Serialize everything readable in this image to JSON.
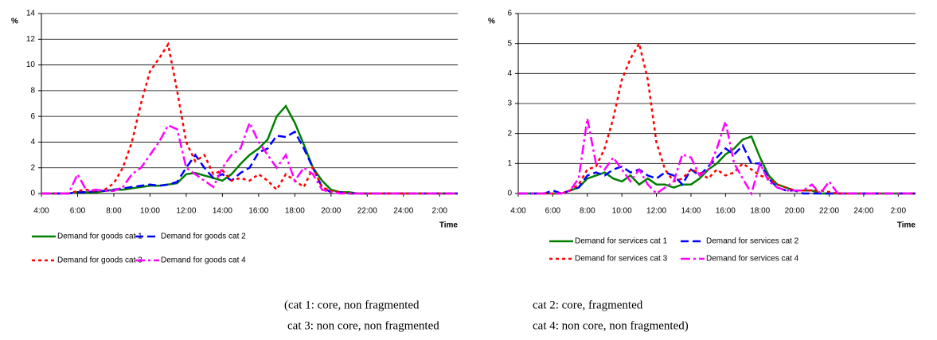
{
  "chart_data": [
    {
      "type": "line",
      "y_label": "%",
      "x_label": "Time",
      "x": [
        4,
        4.5,
        5,
        5.5,
        6,
        6.5,
        7,
        7.5,
        8,
        8.5,
        9,
        9.5,
        10,
        10.5,
        11,
        11.5,
        12,
        12.5,
        13,
        13.5,
        14,
        14.5,
        15,
        15.5,
        16,
        16.5,
        17,
        17.5,
        18,
        18.5,
        19,
        19.5,
        20,
        20.5,
        21,
        21.5,
        22,
        22.5,
        23,
        23.5,
        24,
        24.5,
        25,
        25.5,
        26,
        26.5,
        27
      ],
      "xlim": [
        4,
        27
      ],
      "xticks": [
        {
          "value": 4,
          "label": "4:00"
        },
        {
          "value": 6,
          "label": "6:00"
        },
        {
          "value": 8,
          "label": "8:00"
        },
        {
          "value": 10,
          "label": "10:00"
        },
        {
          "value": 12,
          "label": "12:00"
        },
        {
          "value": 14,
          "label": "14:00"
        },
        {
          "value": 16,
          "label": "16:00"
        },
        {
          "value": 18,
          "label": "18:00"
        },
        {
          "value": 20,
          "label": "20:00"
        },
        {
          "value": 22,
          "label": "22:00"
        },
        {
          "value": 24,
          "label": "24:00"
        },
        {
          "value": 26,
          "label": "2:00"
        }
      ],
      "ylim": [
        0,
        14
      ],
      "yticks": [
        0,
        2,
        4,
        6,
        8,
        10,
        12,
        14
      ],
      "grid": true,
      "series": [
        {
          "name": "Demand for goods cat 1",
          "color": "#008000",
          "line_style": "solid",
          "values": [
            0,
            0,
            0,
            0,
            0.1,
            0.1,
            0.1,
            0.2,
            0.3,
            0.3,
            0.4,
            0.5,
            0.6,
            0.6,
            0.7,
            0.8,
            1.5,
            1.6,
            1.4,
            1.2,
            1.0,
            1.5,
            2.3,
            3.0,
            3.5,
            4.2,
            6.0,
            6.8,
            5.5,
            3.8,
            2.0,
            1.0,
            0.3,
            0.1,
            0.1,
            0,
            0,
            0,
            0,
            0,
            0,
            0,
            0,
            0,
            0,
            0,
            0
          ]
        },
        {
          "name": "Demand for goods cat 2",
          "color": "#0000ff",
          "line_style": "dash",
          "values": [
            0,
            0,
            0,
            0,
            0.1,
            0.1,
            0.2,
            0.2,
            0.3,
            0.4,
            0.5,
            0.6,
            0.7,
            0.6,
            0.7,
            0.9,
            2.0,
            3.0,
            2.0,
            1.2,
            1.5,
            1.0,
            1.6,
            2.0,
            3.2,
            3.5,
            4.5,
            4.4,
            4.8,
            3.5,
            2.0,
            0.5,
            0.1,
            0.1,
            0,
            0,
            0,
            0,
            0,
            0,
            0,
            0,
            0,
            0,
            0,
            0,
            0
          ]
        },
        {
          "name": "Demand for goods cat 3",
          "color": "#ff0000",
          "line_style": "dot",
          "values": [
            0,
            0,
            0,
            0,
            0.2,
            0.3,
            0.2,
            0.3,
            0.8,
            2.0,
            4.0,
            7.0,
            9.5,
            10.5,
            11.6,
            8.0,
            4.0,
            2.5,
            3.0,
            1.5,
            1.8,
            1.0,
            1.2,
            1.0,
            1.5,
            1.0,
            0.3,
            1.5,
            1.0,
            0.5,
            2.0,
            0.5,
            0.2,
            0.1,
            0,
            0,
            0,
            0,
            0,
            0,
            0,
            0,
            0,
            0,
            0,
            0,
            0
          ]
        },
        {
          "name": "Demand for goods  cat 4",
          "color": "#ff00ff",
          "line_style": "dashdot",
          "values": [
            0,
            0,
            0,
            0,
            1.5,
            0.2,
            0.3,
            0.2,
            0.2,
            0.5,
            1.5,
            2.0,
            3.0,
            4.0,
            5.3,
            5.0,
            2.0,
            1.5,
            1.0,
            0.5,
            2.0,
            3.0,
            3.5,
            5.5,
            4.0,
            3.0,
            2.0,
            3.0,
            1.0,
            2.0,
            1.5,
            0.3,
            0.1,
            0,
            0,
            0,
            0,
            0,
            0,
            0,
            0,
            0,
            0,
            0,
            0,
            0,
            0
          ]
        }
      ]
    },
    {
      "type": "line",
      "y_label": "%",
      "x_label": "Time",
      "x": [
        4,
        4.5,
        5,
        5.5,
        6,
        6.5,
        7,
        7.5,
        8,
        8.5,
        9,
        9.5,
        10,
        10.5,
        11,
        11.5,
        12,
        12.5,
        13,
        13.5,
        14,
        14.5,
        15,
        15.5,
        16,
        16.5,
        17,
        17.5,
        18,
        18.5,
        19,
        19.5,
        20,
        20.5,
        21,
        21.5,
        22,
        22.5,
        23,
        23.5,
        24,
        24.5,
        25,
        25.5,
        26,
        26.5,
        27
      ],
      "xlim": [
        4,
        27
      ],
      "xticks": [
        {
          "value": 4,
          "label": "4:00"
        },
        {
          "value": 6,
          "label": "6:00"
        },
        {
          "value": 8,
          "label": "8:00"
        },
        {
          "value": 10,
          "label": "10:00"
        },
        {
          "value": 12,
          "label": "12:00"
        },
        {
          "value": 14,
          "label": "14:00"
        },
        {
          "value": 16,
          "label": "16:00"
        },
        {
          "value": 18,
          "label": "18:00"
        },
        {
          "value": 20,
          "label": "20:00"
        },
        {
          "value": 22,
          "label": "22:00"
        },
        {
          "value": 24,
          "label": "24:00"
        },
        {
          "value": 26,
          "label": "2:00"
        }
      ],
      "ylim": [
        0,
        6
      ],
      "yticks": [
        0,
        1,
        2,
        3,
        4,
        5,
        6
      ],
      "grid": true,
      "series": [
        {
          "name": "Demand for services cat 1",
          "color": "#008000",
          "line_style": "solid",
          "values": [
            0,
            0,
            0,
            0,
            0,
            0,
            0.1,
            0.2,
            0.5,
            0.6,
            0.7,
            0.5,
            0.4,
            0.6,
            0.3,
            0.5,
            0.3,
            0.3,
            0.2,
            0.3,
            0.3,
            0.5,
            0.8,
            1.0,
            1.3,
            1.5,
            1.8,
            1.9,
            1.2,
            0.6,
            0.3,
            0.2,
            0.1,
            0.1,
            0.1,
            0,
            0,
            0,
            0,
            0,
            0,
            0,
            0,
            0,
            0,
            0,
            0
          ]
        },
        {
          "name": "Demand for services cat 2",
          "color": "#0000ff",
          "line_style": "dash",
          "values": [
            0,
            0,
            0,
            0,
            0.1,
            0,
            0.1,
            0.2,
            0.6,
            0.7,
            0.6,
            0.8,
            0.9,
            0.7,
            0.8,
            0.6,
            0.5,
            0.7,
            0.6,
            0.3,
            0.8,
            0.6,
            0.9,
            1.2,
            1.5,
            1.3,
            1.6,
            1.0,
            1.0,
            0.5,
            0.2,
            0.1,
            0.1,
            0,
            0,
            0,
            0,
            0,
            0,
            0,
            0,
            0,
            0,
            0,
            0,
            0,
            0
          ]
        },
        {
          "name": "Demand for services cat 3",
          "color": "#ff0000",
          "line_style": "dot",
          "values": [
            0,
            0,
            0,
            0,
            0,
            0,
            0.1,
            0.3,
            0.8,
            0.9,
            1.5,
            2.5,
            3.8,
            4.5,
            5.0,
            3.8,
            1.7,
            0.8,
            0.4,
            0.5,
            0.8,
            0.7,
            0.5,
            0.8,
            0.6,
            0.7,
            1.0,
            0.8,
            0.6,
            0.5,
            0.3,
            0.2,
            0.1,
            0.1,
            0.1,
            0.1,
            0.05,
            0,
            0,
            0,
            0,
            0,
            0,
            0,
            0,
            0,
            0
          ]
        },
        {
          "name": "Demand for services cat 4",
          "color": "#ff00ff",
          "line_style": "dashdot",
          "values": [
            0,
            0,
            0,
            0,
            0,
            0,
            0.1,
            0.5,
            2.5,
            1.0,
            0.8,
            1.2,
            0.8,
            0.4,
            0.8,
            0.3,
            0,
            0.2,
            0.4,
            1.3,
            1.2,
            0.6,
            0.8,
            1.5,
            2.4,
            1.0,
            0.5,
            0,
            1.0,
            0.4,
            0.2,
            0.1,
            0.1,
            0.1,
            0.3,
            0,
            0.4,
            0,
            0,
            0,
            0,
            0,
            0,
            0,
            0,
            0,
            0
          ]
        }
      ]
    }
  ],
  "footnote": [
    "(cat 1: core, non fragmented",
    "cat 2: core, fragmented",
    "cat 3: non core, non fragmented",
    "cat 4: non core, non fragmented)"
  ]
}
